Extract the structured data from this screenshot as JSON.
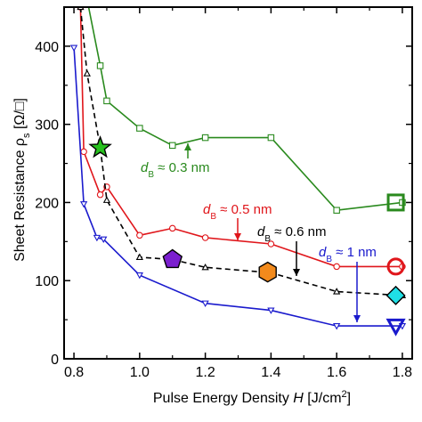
{
  "chart_data": {
    "type": "line",
    "xlabel": "Pulse Energy Density",
    "xlabel_var": "H",
    "xlabel_unit_pre": " [J/cm",
    "xlabel_unit_sup": "2",
    "xlabel_unit_post": "]",
    "ylabel": "Sheet Resistance ρ",
    "ylabel_sub": "s",
    "ylabel_unit": " [Ω/□]",
    "xlim": [
      0.77,
      1.83
    ],
    "ylim": [
      0,
      450
    ],
    "xticks": [
      0.8,
      1.0,
      1.2,
      1.4,
      1.6,
      1.8
    ],
    "xtick_labels": [
      "0.8",
      "1.0",
      "1.2",
      "1.4",
      "1.6",
      "1.8"
    ],
    "yticks": [
      0,
      100,
      200,
      300,
      400
    ],
    "ytick_labels": [
      "0",
      "100",
      "200",
      "300",
      "400"
    ],
    "grid": false,
    "series": [
      {
        "color": "#2a8a1e",
        "marker": "square",
        "dash": "solid",
        "x": [
          0.84,
          0.88,
          0.9,
          1.0,
          1.1,
          1.2,
          1.4,
          1.6,
          1.8
        ],
        "y": [
          460,
          375,
          330,
          295,
          273,
          283,
          283,
          190,
          200
        ],
        "annotation": {
          "sym": "d",
          "sub": "B",
          "text": " ≈ 0.3 nm"
        }
      },
      {
        "color": "#e0161b",
        "marker": "circle",
        "dash": "solid",
        "x": [
          0.82,
          0.83,
          0.88,
          0.9,
          1.0,
          1.1,
          1.2,
          1.4,
          1.6,
          1.8
        ],
        "y": [
          450,
          265,
          210,
          220,
          158,
          167,
          155,
          147,
          118,
          118
        ],
        "annotation": {
          "sym": "d",
          "sub": "B",
          "text": " ≈ 0.5 nm"
        }
      },
      {
        "color": "#000000",
        "marker": "triangle-up",
        "dash": "dashed",
        "x": [
          0.82,
          0.84,
          0.88,
          0.9,
          1.0,
          1.1,
          1.2,
          1.4,
          1.6,
          1.8
        ],
        "y": [
          450,
          365,
          270,
          203,
          130,
          127,
          117,
          110,
          86,
          81
        ],
        "annotation": {
          "sym": "d",
          "sub": "B",
          "text": " ≈ 0.6 nm"
        }
      },
      {
        "color": "#1a1acd",
        "marker": "triangle-down",
        "dash": "solid",
        "x": [
          0.8,
          0.83,
          0.87,
          0.89,
          1.0,
          1.2,
          1.4,
          1.6,
          1.8
        ],
        "y": [
          398,
          198,
          155,
          153,
          107,
          71,
          62,
          42,
          42
        ],
        "annotation": {
          "sym": "d",
          "sub": "B",
          "text": " ≈ 1 nm"
        }
      }
    ],
    "special_markers": [
      {
        "shape": "star",
        "x": 0.88,
        "y": 270,
        "fill": "#27c21e",
        "stroke": "#000000"
      },
      {
        "shape": "pentagon",
        "x": 1.1,
        "y": 127,
        "fill": "#7b1fcf",
        "stroke": "#000000"
      },
      {
        "shape": "hexagon",
        "x": 1.39,
        "y": 111,
        "fill": "#f28a1c",
        "stroke": "#000000"
      },
      {
        "shape": "diamond",
        "x": 1.78,
        "y": 81,
        "fill": "#1fe0e6",
        "stroke": "#000000"
      }
    ],
    "legend_markers": [
      {
        "shape": "square",
        "x": 1.78,
        "y": 200,
        "color": "#2a8a1e"
      },
      {
        "shape": "circle",
        "x": 1.78,
        "y": 118,
        "color": "#e0161b"
      },
      {
        "shape": "triangle-down",
        "x": 1.78,
        "y": 42,
        "color": "#1a1acd"
      }
    ]
  }
}
